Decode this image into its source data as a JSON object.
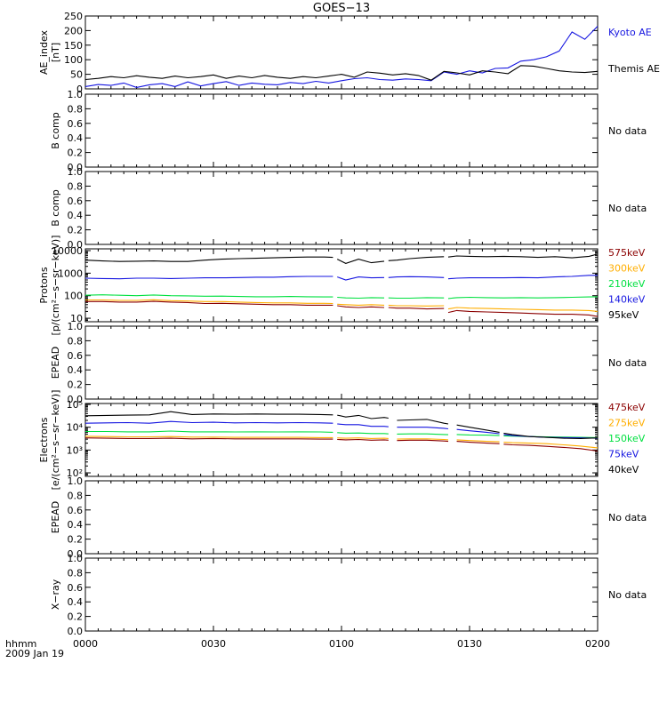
{
  "title": "GOES−13",
  "footer": {
    "hhmm_label": "hhmm",
    "date_label": "2009 Jan 19"
  },
  "colors": {
    "black": "#000000",
    "blue": "#1515e0",
    "green": "#00e040",
    "orange": "#ffae00",
    "darkred": "#8b0000"
  },
  "chart_data": [
    {
      "type": "line",
      "id": "ae",
      "ylabel": "AE_index [nT]",
      "ylabel_lines": [
        "AE_index",
        "[nT]"
      ],
      "ylim": [
        0,
        250
      ],
      "scale": "linear",
      "yticks": [
        0,
        50,
        100,
        150,
        200,
        250
      ],
      "x_minutes": [
        0,
        3,
        6,
        9,
        12,
        15,
        18,
        21,
        24,
        27,
        30,
        33,
        36,
        39,
        42,
        45,
        48,
        51,
        54,
        57,
        60,
        63,
        66,
        69,
        72,
        75,
        78,
        81,
        84,
        87,
        90,
        93,
        96,
        99,
        102,
        105,
        108,
        111,
        114,
        117,
        120
      ],
      "series": [
        {
          "name": "Kyoto AE",
          "color": "#1515e0",
          "values": [
            8,
            15,
            12,
            20,
            5,
            14,
            18,
            8,
            24,
            10,
            18,
            25,
            12,
            20,
            16,
            14,
            22,
            18,
            26,
            20,
            28,
            35,
            38,
            32,
            30,
            34,
            32,
            28,
            58,
            50,
            62,
            55,
            70,
            72,
            95,
            100,
            110,
            130,
            195,
            170,
            215
          ]
        },
        {
          "name": "Themis AE",
          "color": "#000000",
          "values": [
            32,
            36,
            42,
            38,
            45,
            40,
            36,
            44,
            38,
            42,
            48,
            36,
            44,
            38,
            46,
            40,
            36,
            42,
            38,
            44,
            50,
            40,
            58,
            54,
            48,
            52,
            46,
            30,
            60,
            55,
            48,
            62,
            58,
            52,
            80,
            78,
            70,
            62,
            58,
            56,
            60
          ]
        }
      ]
    },
    {
      "type": "line",
      "id": "bcomp1",
      "ylabel": "B comp",
      "ylim": [
        0,
        1
      ],
      "yticks": [
        0.0,
        0.2,
        0.4,
        0.6,
        0.8,
        1.0
      ],
      "note": "No data",
      "series": []
    },
    {
      "type": "line",
      "id": "bcomp2",
      "ylabel": "B comp",
      "ylim": [
        0,
        1
      ],
      "yticks": [
        0.0,
        0.2,
        0.4,
        0.6,
        0.8,
        1.0
      ],
      "note": "No data",
      "series": []
    },
    {
      "type": "line",
      "id": "protons",
      "ylabel": "Protons [p/(cm²-s-sr-keV)]",
      "ylabel_lines": [
        "Protons",
        "[p/(cm²−s−sr−keV)]"
      ],
      "ylim": [
        7,
        12000
      ],
      "scale": "log",
      "yticks": [
        10,
        100,
        1000,
        10000
      ],
      "x_minutes": [
        0,
        4,
        8,
        12,
        16,
        20,
        24,
        28,
        32,
        36,
        40,
        44,
        48,
        52,
        56,
        58,
        59,
        61,
        64,
        67,
        70,
        71,
        73,
        76,
        80,
        84,
        85,
        87,
        90,
        94,
        98,
        102,
        106,
        110,
        114,
        118,
        120
      ],
      "gaps_after": [
        15,
        20,
        25
      ],
      "series": [
        {
          "name": "575keV",
          "color": "#8b0000",
          "values": [
            55,
            55,
            52,
            52,
            56,
            52,
            50,
            45,
            46,
            44,
            42,
            40,
            40,
            38,
            38,
            38,
            36,
            32,
            30,
            32,
            30,
            30,
            28,
            28,
            26,
            27,
            18,
            22,
            20,
            19,
            18,
            17,
            16,
            15,
            15,
            14,
            12
          ]
        },
        {
          "name": "300keV",
          "color": "#ffae00",
          "values": [
            65,
            65,
            62,
            62,
            66,
            60,
            58,
            55,
            55,
            52,
            50,
            48,
            48,
            46,
            46,
            45,
            42,
            40,
            38,
            40,
            38,
            38,
            36,
            36,
            35,
            36,
            26,
            30,
            28,
            27,
            26,
            25,
            24,
            23,
            23,
            22,
            20
          ]
        },
        {
          "name": "210keV",
          "color": "#00e040",
          "values": [
            105,
            110,
            105,
            100,
            108,
            100,
            98,
            95,
            96,
            92,
            90,
            90,
            92,
            90,
            88,
            88,
            85,
            80,
            78,
            82,
            80,
            80,
            78,
            78,
            82,
            80,
            75,
            82,
            85,
            82,
            80,
            82,
            80,
            82,
            85,
            88,
            90
          ]
        },
        {
          "name": "140keV",
          "color": "#1515e0",
          "values": [
            600,
            580,
            560,
            600,
            600,
            580,
            600,
            620,
            620,
            640,
            660,
            660,
            700,
            720,
            720,
            720,
            680,
            500,
            680,
            620,
            640,
            640,
            680,
            700,
            680,
            640,
            560,
            600,
            620,
            620,
            620,
            640,
            620,
            680,
            720,
            800,
            800
          ]
        },
        {
          "name": "95keV",
          "color": "#000000",
          "values": [
            3800,
            3500,
            3300,
            3400,
            3500,
            3300,
            3300,
            3800,
            4200,
            4400,
            4600,
            4800,
            5000,
            5200,
            5200,
            5000,
            4200,
            2700,
            4200,
            2900,
            3400,
            3600,
            3800,
            4400,
            5000,
            5400,
            5200,
            5800,
            5600,
            5400,
            5600,
            5400,
            5000,
            5400,
            4800,
            5600,
            7000
          ]
        }
      ]
    },
    {
      "type": "line",
      "id": "epead1",
      "ylabel": "EPEAD",
      "ylim": [
        0,
        1
      ],
      "yticks": [
        0.0,
        0.2,
        0.4,
        0.6,
        0.8,
        1.0
      ],
      "note": "No data",
      "series": []
    },
    {
      "type": "line",
      "id": "electrons",
      "ylabel": "Electrons [e/(cm²-s-sr-keV)]",
      "ylabel_lines": [
        "Electrons",
        "[e/(cm²−s−sr−keV)]"
      ],
      "ylim": [
        70,
        110000
      ],
      "scale": "log",
      "yticks": [
        100,
        1000,
        10000,
        100000
      ],
      "ytick_labels": [
        "10²",
        "10³",
        "10⁴",
        "10⁵"
      ],
      "x_minutes": [
        0,
        5,
        10,
        15,
        20,
        25,
        30,
        35,
        40,
        45,
        50,
        55,
        58,
        59,
        61,
        64,
        67,
        70,
        71,
        73,
        76,
        80,
        84,
        85,
        87,
        90,
        94,
        97,
        98,
        100,
        104,
        108,
        112,
        116,
        120
      ],
      "gaps_after": [
        12,
        18,
        23,
        27
      ],
      "series": [
        {
          "name": "475keV",
          "color": "#8b0000",
          "values": [
            3400,
            3300,
            3200,
            3200,
            3300,
            3100,
            3200,
            3100,
            3100,
            3100,
            3100,
            3000,
            3000,
            2900,
            2800,
            2900,
            2700,
            2800,
            2700,
            2600,
            2700,
            2700,
            2500,
            2400,
            2400,
            2200,
            2000,
            1900,
            1800,
            1700,
            1600,
            1450,
            1300,
            1150,
            900
          ]
        },
        {
          "name": "275keV",
          "color": "#ffae00",
          "values": [
            4000,
            3900,
            3800,
            3800,
            3900,
            3700,
            3700,
            3600,
            3600,
            3600,
            3600,
            3500,
            3500,
            3400,
            3300,
            3400,
            3200,
            3300,
            3200,
            3000,
            3100,
            3100,
            2900,
            2800,
            2800,
            2600,
            2400,
            2300,
            2200,
            2100,
            2000,
            1900,
            1700,
            1500,
            1250
          ]
        },
        {
          "name": "150keV",
          "color": "#00e040",
          "values": [
            6500,
            6500,
            6300,
            6300,
            6800,
            6300,
            6300,
            6200,
            6300,
            6200,
            6300,
            6200,
            6000,
            5800,
            5500,
            5600,
            5300,
            5300,
            5100,
            5000,
            5100,
            5100,
            4800,
            4700,
            4800,
            4600,
            4500,
            4300,
            4200,
            4100,
            3900,
            3800,
            3700,
            3600,
            3500
          ]
        },
        {
          "name": "75keV",
          "color": "#1515e0",
          "values": [
            15000,
            15500,
            16000,
            15000,
            18000,
            16000,
            16500,
            15500,
            16000,
            15500,
            16000,
            15500,
            15000,
            14000,
            13000,
            13000,
            11000,
            11000,
            10500,
            10000,
            10000,
            10000,
            9000,
            8500,
            8000,
            7000,
            6000,
            5200,
            4800,
            4300,
            3900,
            3600,
            3500,
            3400,
            3300
          ]
        },
        {
          "name": "40keV",
          "color": "#000000",
          "values": [
            32000,
            33000,
            34000,
            35000,
            48000,
            36000,
            38000,
            37000,
            38000,
            37000,
            37000,
            36000,
            35000,
            34000,
            28000,
            33000,
            24000,
            27000,
            25000,
            20000,
            21000,
            22000,
            15000,
            14000,
            12500,
            10000,
            7500,
            6000,
            5500,
            4800,
            3900,
            3600,
            3300,
            3200,
            3400
          ]
        }
      ]
    },
    {
      "type": "line",
      "id": "epead2",
      "ylabel": "EPEAD",
      "ylim": [
        0,
        1
      ],
      "yticks": [
        0.0,
        0.2,
        0.4,
        0.6,
        0.8,
        1.0
      ],
      "note": "No data",
      "series": []
    },
    {
      "type": "line",
      "id": "xray",
      "ylabel": "X−ray",
      "ylim": [
        0,
        1
      ],
      "yticks": [
        0.0,
        0.2,
        0.4,
        0.6,
        0.8,
        1.0
      ],
      "note": "No data",
      "series": []
    }
  ],
  "x_axis": {
    "range_minutes": [
      0,
      120
    ],
    "major_ticks": [
      0,
      30,
      60,
      90,
      120
    ],
    "tick_labels": [
      "0000",
      "0030",
      "0100",
      "0130",
      "0200"
    ]
  }
}
